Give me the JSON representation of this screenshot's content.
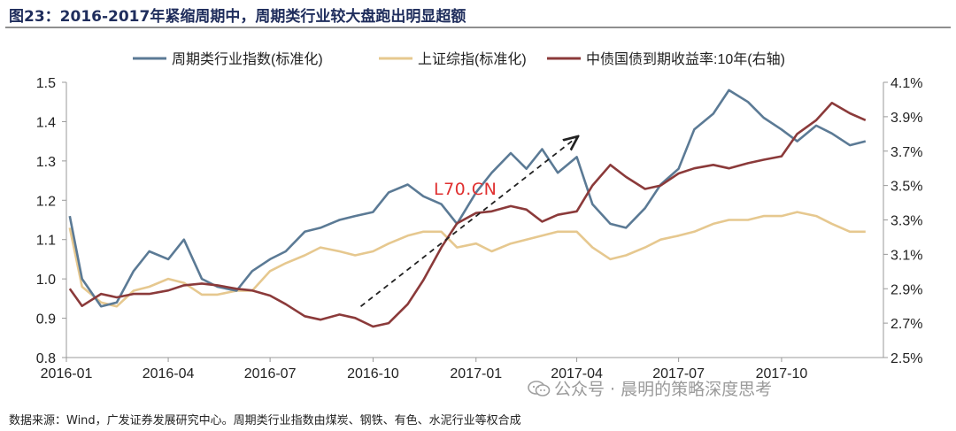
{
  "header": {
    "title": "图23：2016-2017年紧缩周期中，周期类行业较大盘跑出明显超额"
  },
  "footer": {
    "source": "数据来源：Wind，广发证券发展研究中心。周期类行业指数由煤炭、钢铁、有色、水泥行业等权合成"
  },
  "watermark": {
    "text": "公众号 · 晨明的策略深度思考",
    "icon": "wechat-icon"
  },
  "stamp": {
    "text": "L70.CN"
  },
  "chart_data": {
    "type": "line",
    "legend_position": "top",
    "grid": false,
    "xlabel": "",
    "ylabel": "",
    "x_ticks": [
      "2016-01",
      "2016-04",
      "2016-07",
      "2016-10",
      "2017-01",
      "2017-04",
      "2017-07",
      "2017-10"
    ],
    "x_range": [
      "2016-01",
      "2017-12"
    ],
    "y_left": {
      "range": [
        0.8,
        1.5
      ],
      "ticks": [
        "0.8",
        "0.9",
        "1.0",
        "1.1",
        "1.2",
        "1.3",
        "1.4",
        "1.5"
      ]
    },
    "y_right": {
      "range": [
        2.5,
        4.1
      ],
      "ticks": [
        "2.5%",
        "2.7%",
        "2.9%",
        "3.1%",
        "3.3%",
        "3.5%",
        "3.7%",
        "3.9%",
        "4.1%"
      ]
    },
    "annotations": [
      {
        "type": "arrow",
        "style": "dashed",
        "from": {
          "x": "2016-09-20",
          "y": 0.93
        },
        "to": {
          "x": "2017-04-01",
          "y": 1.36
        }
      }
    ],
    "x": [
      "2016-01-04",
      "2016-01-15",
      "2016-02-01",
      "2016-02-15",
      "2016-03-01",
      "2016-03-15",
      "2016-04-01",
      "2016-04-15",
      "2016-05-01",
      "2016-05-15",
      "2016-06-01",
      "2016-06-15",
      "2016-07-01",
      "2016-07-15",
      "2016-08-01",
      "2016-08-15",
      "2016-09-01",
      "2016-09-15",
      "2016-10-01",
      "2016-10-15",
      "2016-11-01",
      "2016-11-15",
      "2016-12-01",
      "2016-12-15",
      "2017-01-01",
      "2017-01-15",
      "2017-02-01",
      "2017-02-15",
      "2017-03-01",
      "2017-03-15",
      "2017-04-01",
      "2017-04-15",
      "2017-05-01",
      "2017-05-15",
      "2017-06-01",
      "2017-06-15",
      "2017-07-01",
      "2017-07-15",
      "2017-08-01",
      "2017-08-15",
      "2017-09-01",
      "2017-09-15",
      "2017-10-01",
      "2017-10-15",
      "2017-11-01",
      "2017-11-15",
      "2017-12-01",
      "2017-12-15"
    ],
    "series": [
      {
        "name": "周期类行业指数(标准化)",
        "axis": "left",
        "color": "#5b7a95",
        "values": [
          1.16,
          1.0,
          0.93,
          0.94,
          1.02,
          1.07,
          1.05,
          1.1,
          1.0,
          0.98,
          0.97,
          1.02,
          1.05,
          1.07,
          1.12,
          1.13,
          1.15,
          1.16,
          1.17,
          1.22,
          1.24,
          1.21,
          1.19,
          1.14,
          1.22,
          1.27,
          1.32,
          1.28,
          1.33,
          1.27,
          1.31,
          1.19,
          1.14,
          1.13,
          1.18,
          1.24,
          1.28,
          1.38,
          1.42,
          1.48,
          1.45,
          1.41,
          1.38,
          1.35,
          1.39,
          1.37,
          1.34,
          1.35
        ]
      },
      {
        "name": "上证综指(标准化)",
        "axis": "left",
        "color": "#e6c88f",
        "values": [
          1.13,
          0.98,
          0.94,
          0.93,
          0.97,
          0.98,
          1.0,
          0.99,
          0.96,
          0.96,
          0.97,
          0.97,
          1.02,
          1.04,
          1.06,
          1.08,
          1.07,
          1.06,
          1.07,
          1.09,
          1.11,
          1.12,
          1.12,
          1.08,
          1.09,
          1.07,
          1.09,
          1.1,
          1.11,
          1.12,
          1.12,
          1.08,
          1.05,
          1.06,
          1.08,
          1.1,
          1.11,
          1.12,
          1.14,
          1.15,
          1.15,
          1.16,
          1.16,
          1.17,
          1.16,
          1.14,
          1.12,
          1.12
        ]
      },
      {
        "name": "中债国债到期收益率:10年(右轴)",
        "axis": "right",
        "color": "#8b3a3a",
        "values": [
          2.9,
          2.8,
          2.87,
          2.85,
          2.87,
          2.87,
          2.89,
          2.92,
          2.93,
          2.92,
          2.9,
          2.89,
          2.86,
          2.81,
          2.74,
          2.72,
          2.75,
          2.73,
          2.68,
          2.7,
          2.81,
          2.95,
          3.14,
          3.28,
          3.34,
          3.35,
          3.38,
          3.36,
          3.29,
          3.33,
          3.35,
          3.5,
          3.62,
          3.55,
          3.48,
          3.5,
          3.57,
          3.6,
          3.62,
          3.6,
          3.63,
          3.65,
          3.67,
          3.8,
          3.88,
          3.98,
          3.92,
          3.88
        ]
      }
    ]
  }
}
